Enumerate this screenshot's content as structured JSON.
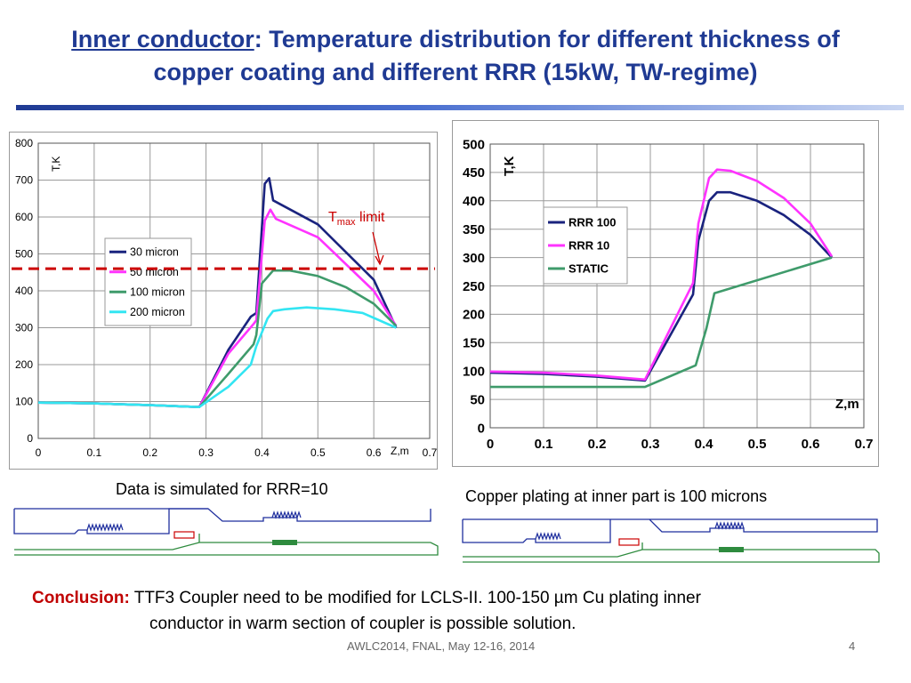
{
  "slide": {
    "title_part1": "Inner conductor",
    "title_part2": ": Temperature distribution for different thickness of",
    "title_line2": "copper coating and different RRR (15kW, TW-regime)",
    "caption_left": "Data is simulated for RRR=10",
    "caption_right": "Copper plating at inner part is 100 microns",
    "conclusion_label": "Conclusion:",
    "conclusion_text1": " TTF3 Coupler need to be modified for LCLS-II. 100-150 µm Cu plating inner",
    "conclusion_text2": "conductor in warm section of coupler is possible solution.",
    "footer_left": "AWLC2014, FNAL, May 12-16, 2014",
    "footer_page": "4"
  },
  "chart_data": [
    {
      "type": "line",
      "ylabel": "T,K",
      "xlabel": "Z,m",
      "xlim": [
        0,
        0.7
      ],
      "ylim": [
        0,
        800
      ],
      "xticks": [
        "0",
        "0.1",
        "0.2",
        "0.3",
        "0.4",
        "0.5",
        "0.6",
        "0.7"
      ],
      "yticks": [
        "0",
        "100",
        "200",
        "300",
        "400",
        "500",
        "600",
        "700",
        "800"
      ],
      "grid": true,
      "legend_position": "left-middle",
      "annotation": {
        "text_main": "T",
        "text_sub": "max",
        "text_suffix": " limit",
        "limit_value": 460,
        "color": "#cc0000"
      },
      "series": [
        {
          "name": "30 micron",
          "color": "#1a237e",
          "x": [
            0,
            0.1,
            0.2,
            0.288,
            0.34,
            0.38,
            0.39,
            0.405,
            0.413,
            0.42,
            0.5,
            0.6,
            0.64
          ],
          "y": [
            97,
            95,
            90,
            85,
            240,
            330,
            340,
            690,
            705,
            645,
            580,
            430,
            300
          ]
        },
        {
          "name": "50 micron",
          "color": "#ff33ff",
          "x": [
            0,
            0.1,
            0.2,
            0.288,
            0.34,
            0.385,
            0.39,
            0.405,
            0.415,
            0.425,
            0.5,
            0.6,
            0.64
          ],
          "y": [
            97,
            95,
            90,
            85,
            230,
            310,
            320,
            590,
            620,
            595,
            545,
            400,
            305
          ]
        },
        {
          "name": "100 micron",
          "color": "#3f9b6b",
          "x": [
            0,
            0.1,
            0.2,
            0.288,
            0.34,
            0.385,
            0.39,
            0.4,
            0.42,
            0.45,
            0.5,
            0.55,
            0.6,
            0.64
          ],
          "y": [
            97,
            95,
            90,
            85,
            175,
            255,
            280,
            420,
            455,
            455,
            440,
            410,
            365,
            305
          ]
        },
        {
          "name": "200 micron",
          "color": "#33e5f2",
          "x": [
            0,
            0.1,
            0.2,
            0.288,
            0.34,
            0.38,
            0.39,
            0.41,
            0.42,
            0.44,
            0.48,
            0.53,
            0.58,
            0.64
          ],
          "y": [
            97,
            95,
            90,
            85,
            140,
            200,
            250,
            325,
            345,
            350,
            355,
            350,
            340,
            300
          ]
        }
      ]
    },
    {
      "type": "line",
      "ylabel": "T,K",
      "xlabel": "Z,m",
      "xlim": [
        0,
        0.7
      ],
      "ylim": [
        0,
        500
      ],
      "xticks": [
        "0",
        "0.1",
        "0.2",
        "0.3",
        "0.4",
        "0.5",
        "0.6",
        "0.7"
      ],
      "yticks": [
        "0",
        "50",
        "100",
        "150",
        "200",
        "250",
        "300",
        "350",
        "400",
        "450",
        "500"
      ],
      "grid": true,
      "legend_position": "top-left",
      "series": [
        {
          "name": "RRR 100",
          "color": "#1a237e",
          "x": [
            0,
            0.1,
            0.2,
            0.29,
            0.38,
            0.39,
            0.41,
            0.425,
            0.45,
            0.5,
            0.55,
            0.6,
            0.64
          ],
          "y": [
            97,
            95,
            90,
            83,
            235,
            330,
            400,
            415,
            415,
            400,
            375,
            340,
            300
          ]
        },
        {
          "name": "RRR 10",
          "color": "#ff33ff",
          "x": [
            0,
            0.1,
            0.2,
            0.29,
            0.38,
            0.39,
            0.41,
            0.425,
            0.45,
            0.5,
            0.55,
            0.6,
            0.64
          ],
          "y": [
            99,
            97,
            92,
            85,
            255,
            360,
            440,
            455,
            453,
            435,
            405,
            360,
            302
          ]
        },
        {
          "name": "STATIC",
          "color": "#3f9b6b",
          "x": [
            0,
            0.29,
            0.385,
            0.405,
            0.42,
            0.64
          ],
          "y": [
            72,
            72,
            110,
            175,
            237,
            300
          ]
        }
      ]
    }
  ]
}
